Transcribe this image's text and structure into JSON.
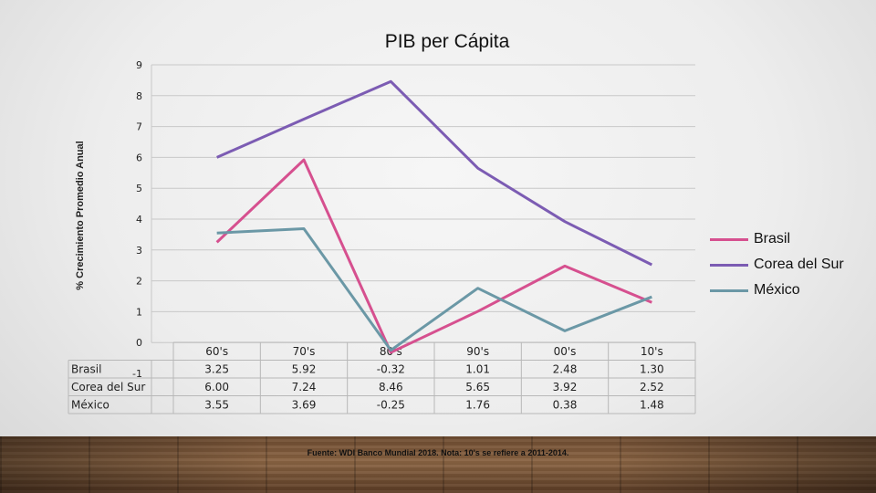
{
  "chart_data": {
    "type": "line",
    "title": "PIB per Cápita",
    "ylabel": "% Crecimiento Promedio Anual",
    "xlabel": "",
    "categories": [
      "60's",
      "70's",
      "80's",
      "90's",
      "00's",
      "10's"
    ],
    "ylim": [
      -1,
      9
    ],
    "yticks": [
      9,
      8,
      7,
      6,
      5,
      4,
      3,
      2,
      1,
      0,
      -1
    ],
    "grid": true,
    "legend_position": "right",
    "series": [
      {
        "name": "Brasil",
        "color": "#d6508f",
        "values": [
          3.25,
          5.92,
          -0.32,
          1.01,
          2.48,
          1.3
        ],
        "display": [
          "3.25",
          "5.92",
          "-0.32",
          "1.01",
          "2.48",
          "1.30"
        ]
      },
      {
        "name": "Corea del Sur",
        "color": "#7c5cb3",
        "values": [
          6.0,
          7.24,
          8.46,
          5.65,
          3.92,
          2.52
        ],
        "display": [
          "6.00",
          "7.24",
          "8.46",
          "5.65",
          "3.92",
          "2.52"
        ]
      },
      {
        "name": "México",
        "color": "#6b98a6",
        "values": [
          3.55,
          3.69,
          -0.25,
          1.76,
          0.38,
          1.48
        ],
        "display": [
          "3.55",
          "3.69",
          "-0.25",
          "1.76",
          "0.38",
          "1.48"
        ]
      }
    ]
  },
  "footer": {
    "source": "Fuente: WDI Banco Mundial 2018. Nota: 10's se refiere a 2011-2014."
  }
}
